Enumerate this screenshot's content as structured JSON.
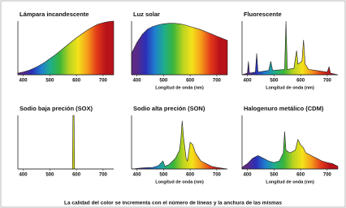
{
  "chart_data": [
    {
      "type": "area",
      "title": "Lámpara incandescente",
      "xlim": [
        380,
        740
      ],
      "ylim": [
        0,
        100
      ],
      "xticks": [
        400,
        500,
        600,
        700
      ],
      "x": [
        380,
        400,
        420,
        440,
        460,
        480,
        500,
        520,
        540,
        560,
        580,
        600,
        620,
        640,
        660,
        680,
        700,
        720,
        740
      ],
      "values": [
        3,
        5,
        8,
        12,
        17,
        23,
        30,
        37,
        45,
        53,
        61,
        69,
        76,
        83,
        89,
        94,
        97,
        99,
        100
      ]
    },
    {
      "type": "area",
      "title": "Luz solar",
      "xlabel": "Longitud de onda (nm)",
      "xlim": [
        380,
        740
      ],
      "ylim": [
        0,
        100
      ],
      "xticks": [
        400,
        500,
        600,
        700
      ],
      "x": [
        380,
        400,
        420,
        440,
        460,
        480,
        500,
        520,
        540,
        560,
        580,
        600,
        620,
        640,
        660,
        680,
        700,
        720,
        740
      ],
      "values": [
        40,
        60,
        75,
        85,
        90,
        93,
        95,
        96,
        96,
        95,
        93,
        90,
        87,
        84,
        80,
        76,
        72,
        68,
        64
      ]
    },
    {
      "type": "area",
      "title": "Fluorescente",
      "xlabel": "Longitud de onda (nm)",
      "xlim": [
        380,
        740
      ],
      "ylim": [
        0,
        100
      ],
      "xticks": [
        400,
        500,
        600,
        700
      ],
      "x": [
        380,
        400,
        404,
        408,
        430,
        435,
        440,
        480,
        488,
        495,
        540,
        545,
        550,
        575,
        580,
        585,
        590,
        605,
        611,
        617,
        630,
        700,
        707,
        712,
        740
      ],
      "values": [
        0,
        3,
        25,
        3,
        5,
        40,
        5,
        8,
        25,
        8,
        10,
        100,
        10,
        12,
        30,
        45,
        20,
        25,
        65,
        20,
        10,
        5,
        15,
        3,
        0
      ]
    },
    {
      "type": "area",
      "title": "Sodio baja preción (SOX)",
      "xlim": [
        380,
        740
      ],
      "ylim": [
        0,
        100
      ],
      "xticks": [
        400,
        500,
        600,
        700
      ],
      "x": [
        380,
        585,
        587,
        591,
        593,
        740
      ],
      "values": [
        0,
        0,
        100,
        100,
        0,
        0
      ]
    },
    {
      "type": "area",
      "title": "Sodio alta preción (SON)",
      "xlabel": "Longitud de onda (nm)",
      "xlim": [
        380,
        740
      ],
      "ylim": [
        0,
        100
      ],
      "xticks": [
        400,
        500,
        600,
        700
      ],
      "x": [
        380,
        420,
        460,
        480,
        498,
        505,
        520,
        545,
        560,
        565,
        570,
        575,
        580,
        585,
        590,
        600,
        610,
        620,
        640,
        680,
        700,
        740
      ],
      "values": [
        0,
        2,
        3,
        6,
        15,
        5,
        8,
        20,
        35,
        55,
        90,
        60,
        40,
        20,
        15,
        50,
        45,
        30,
        15,
        5,
        3,
        0
      ]
    },
    {
      "type": "area",
      "title": "Halogenuro metálico (CDM)",
      "xlabel": "Longitud de onda (nm)",
      "xlim": [
        380,
        740
      ],
      "ylim": [
        0,
        100
      ],
      "xticks": [
        400,
        500,
        600,
        700
      ],
      "x": [
        380,
        400,
        410,
        420,
        440,
        460,
        480,
        500,
        520,
        535,
        540,
        545,
        560,
        580,
        590,
        600,
        610,
        620,
        640,
        660,
        680,
        700,
        720,
        740
      ],
      "values": [
        3,
        10,
        15,
        20,
        25,
        20,
        15,
        12,
        15,
        30,
        70,
        35,
        30,
        35,
        55,
        45,
        40,
        30,
        25,
        20,
        15,
        12,
        10,
        5
      ]
    }
  ],
  "caption": "La calidad del color se incrementa con el número de líneas y la anchura de las mismas"
}
